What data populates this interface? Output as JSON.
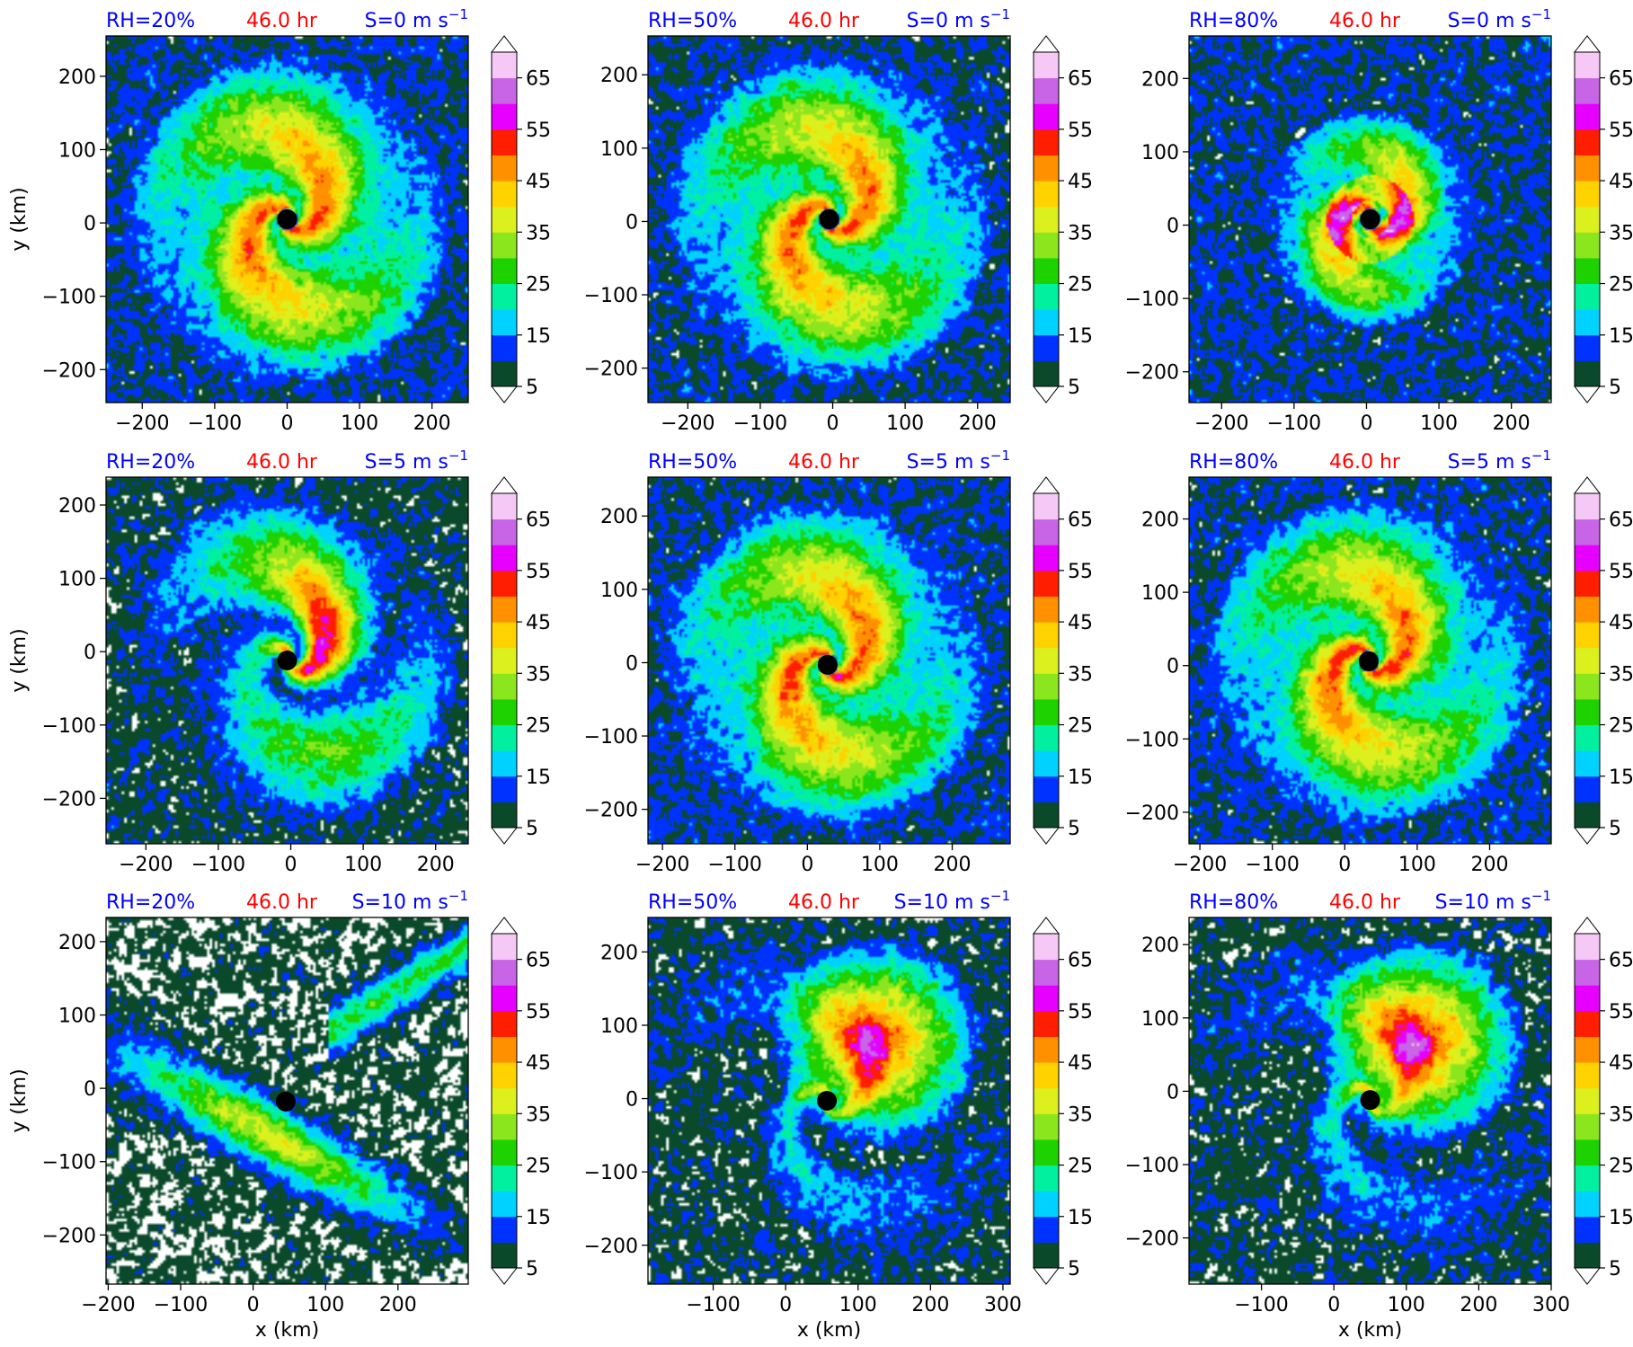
{
  "figure": {
    "time_label": "46.0 hr",
    "x_axis_label": "x (km)",
    "y_axis_label": "y (km)",
    "colors": {
      "rh_label": "#0000ff",
      "time_label": "#ff0000",
      "shear_label": "#0000ff"
    }
  },
  "colorbar": {
    "levels": [
      5,
      10,
      15,
      20,
      25,
      30,
      35,
      40,
      45,
      50,
      55,
      60,
      65,
      70
    ],
    "tick_labels": [
      "5",
      "15",
      "25",
      "35",
      "45",
      "55",
      "65"
    ],
    "colors": [
      "#0a4a2a",
      "#0032ff",
      "#00d2ff",
      "#00f0a0",
      "#1ed200",
      "#8ce61e",
      "#dcf01e",
      "#ffd200",
      "#ff9100",
      "#ff1e00",
      "#e600ff",
      "#c864e6",
      "#f5c8f5"
    ],
    "extend": "both"
  },
  "chart_data": [
    {
      "type": "heatmap",
      "rh_label": "RH=20%",
      "shear_label": "S=0 m s",
      "xlim": [
        -250,
        250
      ],
      "ylim": [
        -245,
        255
      ],
      "xticks": [
        -200,
        -100,
        0,
        100,
        200
      ],
      "yticks": [
        -200,
        -100,
        0,
        100,
        200
      ],
      "center": [
        0,
        5
      ],
      "pattern": "spiral"
    },
    {
      "type": "heatmap",
      "rh_label": "RH=50%",
      "shear_label": "S=0 m s",
      "xlim": [
        -255,
        245
      ],
      "ylim": [
        -247,
        253
      ],
      "xticks": [
        -200,
        -100,
        0,
        100,
        200
      ],
      "yticks": [
        -200,
        -100,
        0,
        100,
        200
      ],
      "center": [
        -5,
        3
      ],
      "pattern": "spiral"
    },
    {
      "type": "heatmap",
      "rh_label": "RH=80%",
      "shear_label": "S=0 m s",
      "xlim": [
        -245,
        255
      ],
      "ylim": [
        -242,
        258
      ],
      "xticks": [
        -200,
        -100,
        0,
        100,
        200
      ],
      "yticks": [
        -200,
        -100,
        0,
        100,
        200
      ],
      "center": [
        5,
        8
      ],
      "pattern": "compact"
    },
    {
      "type": "heatmap",
      "rh_label": "RH=20%",
      "shear_label": "S=5 m s",
      "xlim": [
        -255,
        245
      ],
      "ylim": [
        -262,
        238
      ],
      "xticks": [
        -200,
        -100,
        0,
        100,
        200
      ],
      "yticks": [
        -200,
        -100,
        0,
        100,
        200
      ],
      "center": [
        -5,
        -12
      ],
      "pattern": "open"
    },
    {
      "type": "heatmap",
      "rh_label": "RH=50%",
      "shear_label": "S=5 m s",
      "xlim": [
        -220,
        280
      ],
      "ylim": [
        -247,
        253
      ],
      "xticks": [
        -200,
        -100,
        0,
        100,
        200
      ],
      "yticks": [
        -200,
        -100,
        0,
        100,
        200
      ],
      "center": [
        28,
        -3
      ],
      "pattern": "spiral"
    },
    {
      "type": "heatmap",
      "rh_label": "RH=80%",
      "shear_label": "S=5 m s",
      "xlim": [
        -215,
        285
      ],
      "ylim": [
        -243,
        257
      ],
      "xticks": [
        -200,
        -100,
        0,
        100,
        200
      ],
      "yticks": [
        -200,
        -100,
        0,
        100,
        200
      ],
      "center": [
        33,
        6
      ],
      "pattern": "spiral"
    },
    {
      "type": "heatmap",
      "rh_label": "RH=20%",
      "shear_label": "S=10 m s",
      "xlim": [
        -203,
        297
      ],
      "ylim": [
        -267,
        233
      ],
      "xticks": [
        -200,
        -100,
        0,
        100,
        200
      ],
      "yticks": [
        -200,
        -100,
        0,
        100,
        200
      ],
      "center": [
        45,
        -18
      ],
      "pattern": "band"
    },
    {
      "type": "heatmap",
      "rh_label": "RH=50%",
      "shear_label": "S=10 m s",
      "xlim": [
        -190,
        310
      ],
      "ylim": [
        -253,
        247
      ],
      "xticks": [
        -100,
        0,
        100,
        200,
        300
      ],
      "yticks": [
        -200,
        -100,
        0,
        100,
        200
      ],
      "center": [
        57,
        -3
      ],
      "pattern": "shear"
    },
    {
      "type": "heatmap",
      "rh_label": "RH=80%",
      "shear_label": "S=10 m s",
      "xlim": [
        -200,
        300
      ],
      "ylim": [
        -263,
        237
      ],
      "xticks": [
        -100,
        0,
        100,
        200,
        300
      ],
      "yticks": [
        -200,
        -100,
        0,
        100,
        200
      ],
      "center": [
        50,
        -12
      ],
      "pattern": "shear"
    }
  ]
}
